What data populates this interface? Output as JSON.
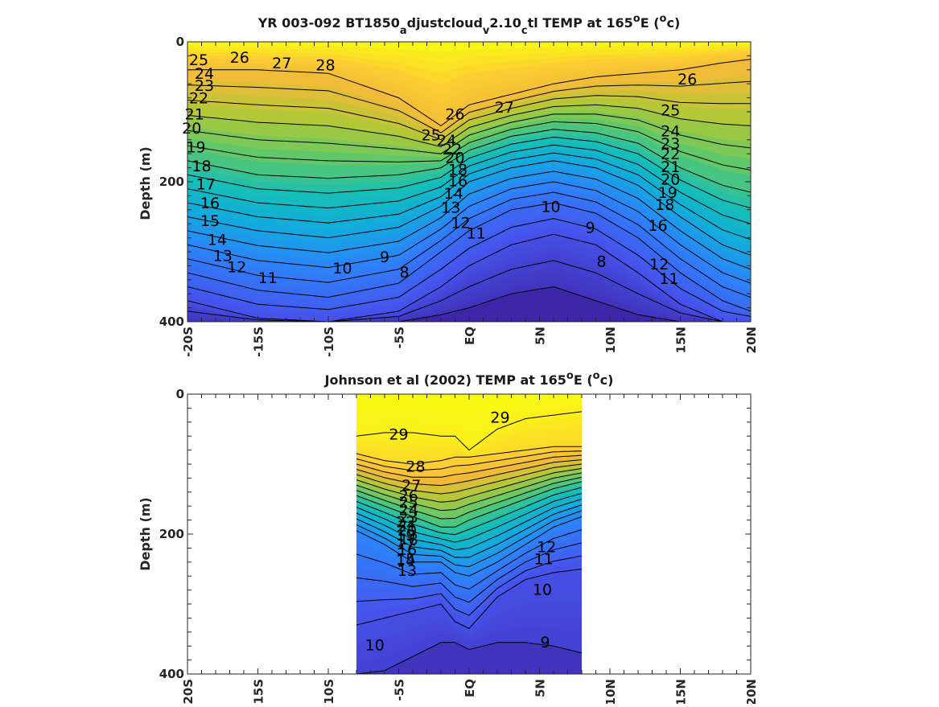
{
  "chart_data": [
    {
      "type": "heatmap",
      "title_parts": [
        "YR 003-092 BT1850",
        "a",
        "djustcloud",
        "v",
        "2.10",
        "c",
        "tl TEMP at 165",
        "o",
        "E (",
        "o",
        "c)"
      ],
      "ylabel": "Depth (m)",
      "xlabel": "",
      "x_ticks": [
        "-20S",
        "-15S",
        "-10S",
        "-5S",
        "EQ",
        "5N",
        "10N",
        "15N",
        "20N"
      ],
      "x_tick_values": [
        -20,
        -15,
        -10,
        -5,
        0,
        5,
        10,
        15,
        20
      ],
      "y_ticks": [
        "0",
        "200",
        "400"
      ],
      "y_tick_values": [
        0,
        200,
        400
      ],
      "xlim": [
        -20,
        20
      ],
      "ylim": [
        0,
        400
      ],
      "y_reversed": true,
      "data_extent": [
        -20,
        20
      ],
      "colormap": "parula",
      "color_range_degC": [
        7,
        29.5
      ],
      "isotherm_depths_m": {
        "x": [
          -20,
          -15,
          -10,
          -5,
          -2,
          0,
          3,
          6,
          9,
          12,
          15,
          18,
          20
        ],
        "t26": [
          40,
          40,
          45,
          80,
          120,
          90,
          75,
          60,
          50,
          45,
          40,
          30,
          25
        ],
        "t20": [
          170,
          190,
          195,
          190,
          180,
          155,
          135,
          125,
          130,
          145,
          180,
          205,
          215
        ],
        "t16": [
          250,
          270,
          280,
          265,
          235,
          200,
          180,
          170,
          180,
          205,
          250,
          290,
          305
        ],
        "t12": [
          330,
          355,
          365,
          345,
          300,
          270,
          240,
          230,
          245,
          280,
          330,
          370,
          385
        ],
        "t10": [
          370,
          395,
          400,
          385,
          350,
          320,
          290,
          275,
          290,
          330,
          375,
          400,
          400
        ],
        "t8": [
          400,
          400,
          400,
          400,
          390,
          380,
          360,
          350,
          370,
          390,
          400,
          400,
          400
        ]
      },
      "contour_labels": [
        {
          "text": "25",
          "x": -19.2,
          "y": 25
        },
        {
          "text": "26",
          "x": -16.3,
          "y": 22
        },
        {
          "text": "27",
          "x": -13.3,
          "y": 30
        },
        {
          "text": "28",
          "x": -10.2,
          "y": 33
        },
        {
          "text": "24",
          "x": -18.8,
          "y": 45
        },
        {
          "text": "23",
          "x": -18.8,
          "y": 62
        },
        {
          "text": "22",
          "x": -19.2,
          "y": 80
        },
        {
          "text": "21",
          "x": -19.5,
          "y": 103
        },
        {
          "text": "20",
          "x": -19.7,
          "y": 123
        },
        {
          "text": "19",
          "x": -19.4,
          "y": 150
        },
        {
          "text": "18",
          "x": -19.0,
          "y": 177
        },
        {
          "text": "17",
          "x": -18.7,
          "y": 203
        },
        {
          "text": "16",
          "x": -18.4,
          "y": 230
        },
        {
          "text": "15",
          "x": -18.4,
          "y": 255
        },
        {
          "text": "14",
          "x": -17.9,
          "y": 282
        },
        {
          "text": "13",
          "x": -17.5,
          "y": 305
        },
        {
          "text": "12",
          "x": -16.5,
          "y": 321
        },
        {
          "text": "11",
          "x": -14.3,
          "y": 337
        },
        {
          "text": "10",
          "x": -9.0,
          "y": 323
        },
        {
          "text": "9",
          "x": -6.0,
          "y": 307
        },
        {
          "text": "8",
          "x": -4.6,
          "y": 329
        },
        {
          "text": "26",
          "x": -1.0,
          "y": 103
        },
        {
          "text": "25",
          "x": -2.7,
          "y": 133
        },
        {
          "text": "24",
          "x": -1.6,
          "y": 140
        },
        {
          "text": "22",
          "x": -1.2,
          "y": 153
        },
        {
          "text": "20",
          "x": -1.0,
          "y": 165
        },
        {
          "text": "18",
          "x": -0.8,
          "y": 182
        },
        {
          "text": "16",
          "x": -0.8,
          "y": 198
        },
        {
          "text": "14",
          "x": -1.1,
          "y": 216
        },
        {
          "text": "13",
          "x": -1.3,
          "y": 236
        },
        {
          "text": "12",
          "x": -0.6,
          "y": 258
        },
        {
          "text": "11",
          "x": 0.5,
          "y": 273
        },
        {
          "text": "27",
          "x": 2.5,
          "y": 93
        },
        {
          "text": "10",
          "x": 5.8,
          "y": 235
        },
        {
          "text": "9",
          "x": 8.6,
          "y": 265
        },
        {
          "text": "8",
          "x": 9.4,
          "y": 313
        },
        {
          "text": "26",
          "x": 15.5,
          "y": 53
        },
        {
          "text": "25",
          "x": 14.3,
          "y": 97
        },
        {
          "text": "24",
          "x": 14.3,
          "y": 127
        },
        {
          "text": "23",
          "x": 14.3,
          "y": 145
        },
        {
          "text": "22",
          "x": 14.3,
          "y": 160
        },
        {
          "text": "21",
          "x": 14.3,
          "y": 178
        },
        {
          "text": "20",
          "x": 14.3,
          "y": 196
        },
        {
          "text": "19",
          "x": 14.1,
          "y": 215
        },
        {
          "text": "18",
          "x": 13.9,
          "y": 232
        },
        {
          "text": "16",
          "x": 13.4,
          "y": 262
        },
        {
          "text": "12",
          "x": 13.5,
          "y": 317
        },
        {
          "text": "11",
          "x": 14.2,
          "y": 338
        }
      ]
    },
    {
      "type": "heatmap",
      "title_parts": [
        "Johnson et al (2002) TEMP at 165",
        "o",
        "E (",
        "o",
        "c)"
      ],
      "ylabel": "Depth (m)",
      "xlabel": "",
      "x_ticks": [
        "-20S",
        "-15S",
        "-10S",
        "-5S",
        "EQ",
        "5N",
        "10N",
        "15N",
        "20N"
      ],
      "x_tick_values": [
        -20,
        -15,
        -10,
        -5,
        0,
        5,
        10,
        15,
        20
      ],
      "y_ticks": [
        "0",
        "200",
        "400"
      ],
      "y_tick_values": [
        0,
        200,
        400
      ],
      "xlim": [
        -20,
        20
      ],
      "ylim": [
        0,
        400
      ],
      "y_reversed": true,
      "data_extent": [
        -8,
        8
      ],
      "colormap": "parula",
      "color_range_degC": [
        7,
        29.5
      ],
      "isotherm_depths_m": {
        "x": [
          -8,
          -6,
          -4,
          -2,
          -1,
          0,
          2,
          4,
          6,
          8
        ],
        "t29": [
          60,
          55,
          55,
          60,
          60,
          80,
          50,
          35,
          30,
          25
        ],
        "t28": [
          85,
          95,
          100,
          95,
          90,
          90,
          85,
          80,
          75,
          75
        ],
        "t20": [
          145,
          160,
          175,
          190,
          190,
          180,
          165,
          150,
          135,
          125
        ],
        "t14": [
          195,
          215,
          240,
          240,
          255,
          260,
          240,
          215,
          190,
          175
        ],
        "t10": [
          330,
          320,
          310,
          300,
          325,
          335,
          290,
          265,
          255,
          250
        ],
        "t9": [
          400,
          395,
          375,
          355,
          355,
          365,
          355,
          355,
          360,
          370
        ]
      },
      "contour_labels": [
        {
          "text": "29",
          "x": -5.0,
          "y": 57
        },
        {
          "text": "29",
          "x": 2.2,
          "y": 33
        },
        {
          "text": "28",
          "x": -3.8,
          "y": 103
        },
        {
          "text": "27",
          "x": -4.1,
          "y": 130
        },
        {
          "text": "26",
          "x": -4.3,
          "y": 145
        },
        {
          "text": "25",
          "x": -4.3,
          "y": 154
        },
        {
          "text": "24",
          "x": -4.3,
          "y": 165
        },
        {
          "text": "23",
          "x": -4.3,
          "y": 175
        },
        {
          "text": "22",
          "x": -4.5,
          "y": 182
        },
        {
          "text": "21",
          "x": -4.4,
          "y": 188
        },
        {
          "text": "20",
          "x": -4.4,
          "y": 194
        },
        {
          "text": "19",
          "x": -4.5,
          "y": 201
        },
        {
          "text": "18",
          "x": -4.3,
          "y": 207
        },
        {
          "text": "17",
          "x": -4.5,
          "y": 214
        },
        {
          "text": "16",
          "x": -4.4,
          "y": 222
        },
        {
          "text": "15",
          "x": -4.5,
          "y": 235
        },
        {
          "text": "14",
          "x": -4.5,
          "y": 237
        },
        {
          "text": "13",
          "x": -4.4,
          "y": 252
        },
        {
          "text": "12",
          "x": 5.5,
          "y": 218
        },
        {
          "text": "11",
          "x": 5.3,
          "y": 235
        },
        {
          "text": "10",
          "x": 5.2,
          "y": 279
        },
        {
          "text": "10",
          "x": -6.7,
          "y": 358
        },
        {
          "text": "9",
          "x": 5.4,
          "y": 354
        }
      ]
    }
  ]
}
